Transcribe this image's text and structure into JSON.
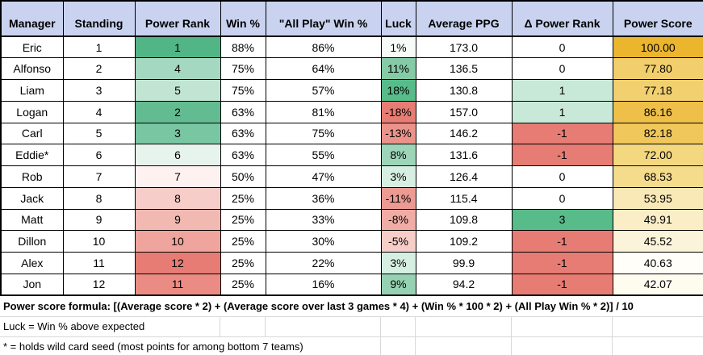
{
  "table": {
    "columns": [
      {
        "key": "manager",
        "label": "Manager"
      },
      {
        "key": "standing",
        "label": "Standing"
      },
      {
        "key": "power_rank",
        "label": "Power Rank"
      },
      {
        "key": "win_pct",
        "label": "Win %"
      },
      {
        "key": "all_play",
        "label": "\"All Play\" Win %"
      },
      {
        "key": "luck",
        "label": "Luck"
      },
      {
        "key": "avg_ppg",
        "label": "Average PPG"
      },
      {
        "key": "delta_pr",
        "label": "Δ Power Rank"
      },
      {
        "key": "power_score",
        "label": "Power Score"
      }
    ],
    "rows": [
      {
        "manager": "Eric",
        "standing": "1",
        "power_rank": "1",
        "win_pct": "88%",
        "all_play": "86%",
        "luck": "1%",
        "avg_ppg": "173.0",
        "delta_pr": "0",
        "power_score": "100.00",
        "colors": {
          "power_rank": "#52b586",
          "luck": "#f6fbf8",
          "delta_pr": "#ffffff",
          "power_score": "#ebb52e"
        }
      },
      {
        "manager": "Alfonso",
        "standing": "2",
        "power_rank": "4",
        "win_pct": "75%",
        "all_play": "64%",
        "luck": "11%",
        "avg_ppg": "136.5",
        "delta_pr": "0",
        "power_score": "77.80",
        "colors": {
          "power_rank": "#a5d8c0",
          "luck": "#84cba6",
          "delta_pr": "#ffffff",
          "power_score": "#f2cf6d"
        }
      },
      {
        "manager": "Liam",
        "standing": "3",
        "power_rank": "5",
        "win_pct": "75%",
        "all_play": "57%",
        "luck": "18%",
        "avg_ppg": "130.8",
        "delta_pr": "1",
        "power_score": "77.18",
        "colors": {
          "power_rank": "#c2e5d3",
          "luck": "#57bb8a",
          "delta_pr": "#c9e9d8",
          "power_score": "#f2d070"
        }
      },
      {
        "manager": "Logan",
        "standing": "4",
        "power_rank": "2",
        "win_pct": "63%",
        "all_play": "81%",
        "luck": "-18%",
        "avg_ppg": "157.0",
        "delta_pr": "1",
        "power_score": "86.16",
        "colors": {
          "power_rank": "#62bb91",
          "luck": "#e67c73",
          "delta_pr": "#c9e9d8",
          "power_score": "#eec04a"
        }
      },
      {
        "manager": "Carl",
        "standing": "5",
        "power_rank": "3",
        "win_pct": "63%",
        "all_play": "75%",
        "luck": "-13%",
        "avg_ppg": "146.2",
        "delta_pr": "-1",
        "power_score": "82.18",
        "colors": {
          "power_rank": "#79c6a2",
          "luck": "#eb938b",
          "delta_pr": "#e67c73",
          "power_score": "#f0c75b"
        }
      },
      {
        "manager": "Eddie*",
        "standing": "6",
        "power_rank": "6",
        "win_pct": "63%",
        "all_play": "55%",
        "luck": "8%",
        "avg_ppg": "131.6",
        "delta_pr": "-1",
        "power_score": "72.00",
        "colors": {
          "power_rank": "#e7f4ed",
          "luck": "#9dd5b9",
          "delta_pr": "#e67c73",
          "power_score": "#f4d87f"
        }
      },
      {
        "manager": "Rob",
        "standing": "7",
        "power_rank": "7",
        "win_pct": "50%",
        "all_play": "47%",
        "luck": "3%",
        "avg_ppg": "126.4",
        "delta_pr": "0",
        "power_score": "68.53",
        "colors": {
          "power_rank": "#fdf2f0",
          "luck": "#d7efe2",
          "delta_pr": "#ffffff",
          "power_score": "#f5dc8c"
        }
      },
      {
        "manager": "Jack",
        "standing": "8",
        "power_rank": "8",
        "win_pct": "25%",
        "all_play": "36%",
        "luck": "-11%",
        "avg_ppg": "115.4",
        "delta_pr": "0",
        "power_score": "53.95",
        "colors": {
          "power_rank": "#f6cdc8",
          "luck": "#ec9a92",
          "delta_pr": "#ffffff",
          "power_score": "#f9e9b7"
        }
      },
      {
        "manager": "Matt",
        "standing": "9",
        "power_rank": "9",
        "win_pct": "25%",
        "all_play": "33%",
        "luck": "-8%",
        "avg_ppg": "109.8",
        "delta_pr": "3",
        "power_score": "49.91",
        "colors": {
          "power_rank": "#f2b8b2",
          "luck": "#f0aca5",
          "delta_pr": "#57bb8a",
          "power_score": "#fbeec7"
        }
      },
      {
        "manager": "Dillon",
        "standing": "10",
        "power_rank": "10",
        "win_pct": "25%",
        "all_play": "30%",
        "luck": "-5%",
        "avg_ppg": "109.2",
        "delta_pr": "-1",
        "power_score": "45.52",
        "colors": {
          "power_rank": "#efa49d",
          "luck": "#f7cdc8",
          "delta_pr": "#e67c73",
          "power_score": "#fcf4da"
        }
      },
      {
        "manager": "Alex",
        "standing": "11",
        "power_rank": "12",
        "win_pct": "25%",
        "all_play": "22%",
        "luck": "3%",
        "avg_ppg": "99.9",
        "delta_pr": "-1",
        "power_score": "40.63",
        "colors": {
          "power_rank": "#e67c73",
          "luck": "#d7efe2",
          "delta_pr": "#e67c73",
          "power_score": "#fffef9"
        }
      },
      {
        "manager": "Jon",
        "standing": "12",
        "power_rank": "11",
        "win_pct": "25%",
        "all_play": "16%",
        "luck": "9%",
        "avg_ppg": "94.2",
        "delta_pr": "-1",
        "power_score": "42.07",
        "colors": {
          "power_rank": "#eb8c84",
          "luck": "#95d1b2",
          "delta_pr": "#e67c73",
          "power_score": "#fefbef"
        }
      }
    ]
  },
  "footer": {
    "formula": "Power score formula: [(Average score * 2) + (Average score over last 3 games * 4) + (Win % * 100 * 2) + (All Play Win % * 2)] / 10",
    "luck_note": "Luck = Win % above expected",
    "wildcard_note": "* = holds wild card seed (most points for among bottom 7 teams)"
  },
  "colors": {
    "header_bg": "#c9d3f0",
    "table_border": "#000000",
    "gridline": "#d8d8d8",
    "scale_green_max": "#57bb8a",
    "scale_red_max": "#e67c73",
    "scale_gold_max": "#ebb52e"
  }
}
